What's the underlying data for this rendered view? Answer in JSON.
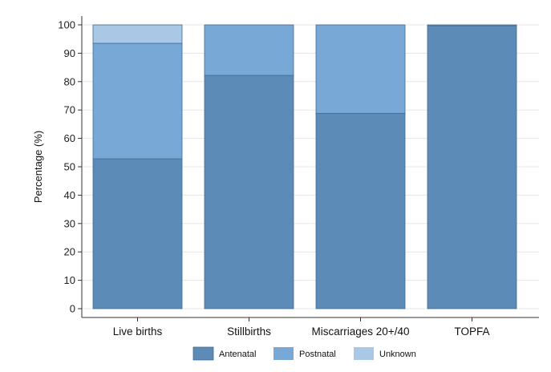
{
  "chart_data": {
    "type": "bar",
    "stacked": true,
    "title": "",
    "xlabel": "",
    "ylabel": "Percentage (%)",
    "ylim": [
      0,
      100
    ],
    "yticks": [
      0,
      10,
      20,
      30,
      40,
      50,
      60,
      70,
      80,
      90,
      100
    ],
    "grid": "horizontal",
    "categories": [
      "Live births",
      "Stillbirths",
      "Miscarriages 20+/40",
      "TOPFA"
    ],
    "series": [
      {
        "name": "Antenatal",
        "color": "#5b8bb6",
        "values": [
          52.8,
          82.2,
          68.8,
          99.7
        ]
      },
      {
        "name": "Postnatal",
        "color": "#78a8d6",
        "values": [
          40.7,
          17.8,
          31.2,
          0.3
        ]
      },
      {
        "name": "Unknown",
        "color": "#a9c8e6",
        "values": [
          6.5,
          0,
          0,
          0
        ]
      }
    ],
    "legend_position": "bottom"
  }
}
